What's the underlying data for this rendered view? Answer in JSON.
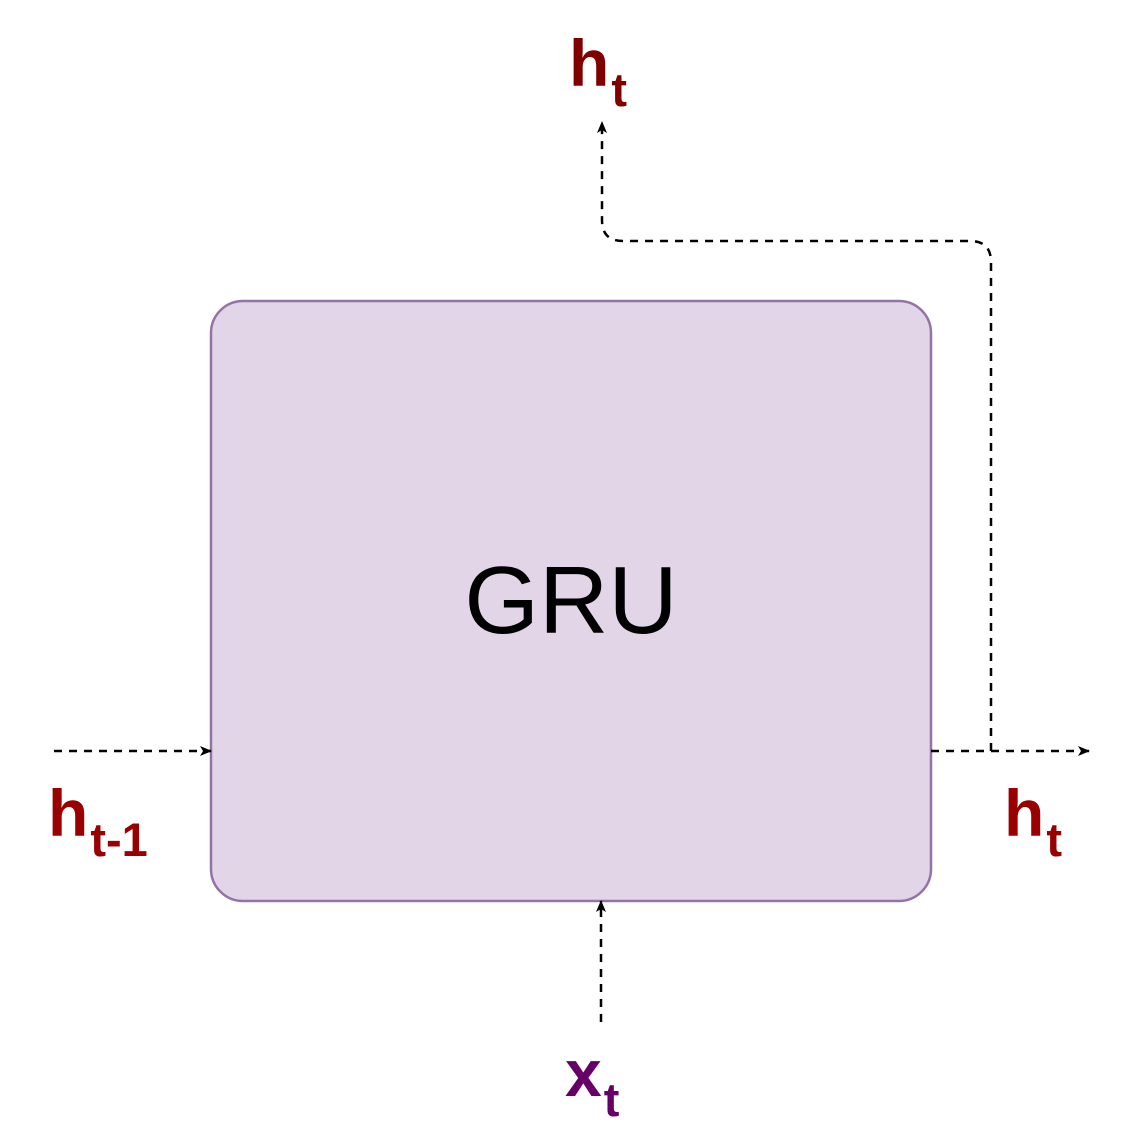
{
  "gru_block": {
    "label": "GRU",
    "fill_color": "#e1d5e7",
    "border_color": "#9673a6"
  },
  "labels": {
    "h_out_top": {
      "base": "h",
      "sub": "t",
      "color": "#800000"
    },
    "h_prev": {
      "base": "h",
      "sub": "t-1",
      "color": "#990000"
    },
    "h_out_right": {
      "base": "h",
      "sub": "t",
      "color": "#990000"
    },
    "x_in": {
      "base": "x",
      "sub": "t",
      "color": "#660066"
    }
  },
  "connectors": {
    "style": "dashed",
    "color": "#000000"
  }
}
